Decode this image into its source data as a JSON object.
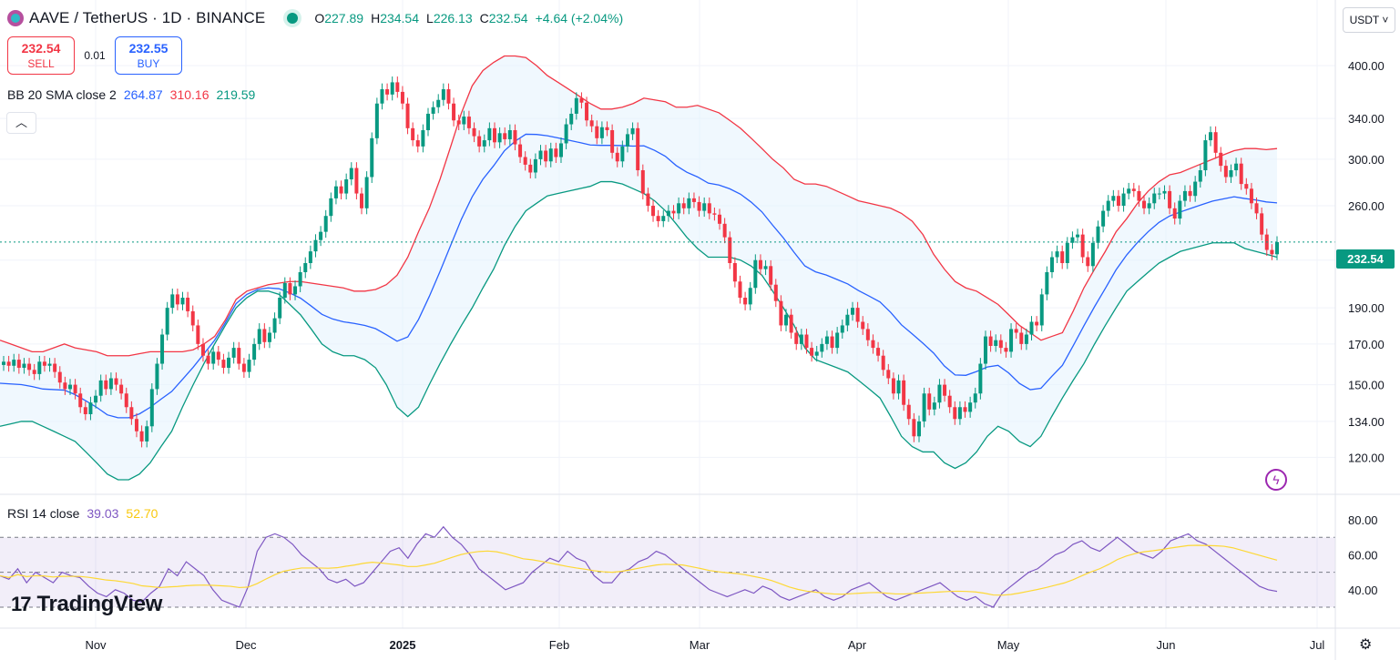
{
  "header": {
    "symbol": "AAVE / TetherUS · 1D · BINANCE",
    "o_label": "O",
    "o_value": "227.89",
    "h_label": "H",
    "h_value": "234.54",
    "l_label": "L",
    "l_value": "226.13",
    "c_label": "C",
    "c_value": "232.54",
    "change": "+4.64 (+2.04%)"
  },
  "trade": {
    "sell_price": "232.54",
    "sell_label": "SELL",
    "spread": "0.01",
    "buy_price": "232.55",
    "buy_label": "BUY"
  },
  "bb_legend": {
    "name": "BB 20 SMA close 2",
    "basis": "264.87",
    "upper": "310.16",
    "lower": "219.59"
  },
  "rsi_legend": {
    "name": "RSI 14 close",
    "rsi": "39.03",
    "ma": "52.70"
  },
  "currency_button": "USDT ˅",
  "current_price_tag": "232.54",
  "collapse_icon": "chevron-up-icon",
  "brand": {
    "mark": "17",
    "name": "TradingView"
  },
  "colors": {
    "up": "#089981",
    "down": "#f23645",
    "basis": "#2962ff",
    "upper": "#f23645",
    "lower": "#089981",
    "rsi": "#7e57c2",
    "rsi_ma": "#fdd835",
    "band_fill": "#e3f2fd"
  },
  "chart_data": {
    "type": "candlestick",
    "x_axis_labels": [
      "Nov",
      "Dec",
      "2025",
      "Feb",
      "Mar",
      "Apr",
      "May",
      "Jun",
      "Jul"
    ],
    "price_axis": {
      "scale": "log",
      "ticks": [
        120,
        134,
        150,
        170,
        190,
        220,
        260,
        300,
        340,
        400
      ]
    },
    "rsi_axis": {
      "ticks": [
        40,
        60,
        80
      ],
      "bands": [
        30,
        50,
        70
      ]
    },
    "closes": [
      161,
      159,
      162,
      158,
      160,
      157,
      155,
      161,
      159,
      160,
      156,
      151,
      148,
      150,
      146,
      140,
      137,
      142,
      145,
      152,
      148,
      153,
      150,
      146,
      140,
      135,
      130,
      126,
      132,
      148,
      160,
      175,
      190,
      198,
      192,
      196,
      188,
      180,
      170,
      164,
      160,
      166,
      162,
      158,
      163,
      168,
      160,
      156,
      162,
      170,
      178,
      171,
      176,
      184,
      196,
      205,
      198,
      203,
      212,
      218,
      226,
      234,
      240,
      252,
      266,
      276,
      270,
      282,
      292,
      270,
      258,
      284,
      320,
      356,
      372,
      366,
      380,
      369,
      356,
      330,
      318,
      312,
      328,
      345,
      352,
      360,
      372,
      356,
      338,
      334,
      342,
      330,
      322,
      312,
      318,
      330,
      316,
      325,
      319,
      328,
      314,
      302,
      295,
      288,
      300,
      308,
      298,
      310,
      302,
      315,
      334,
      345,
      362,
      357,
      338,
      332,
      320,
      331,
      328,
      306,
      298,
      312,
      324,
      330,
      290,
      270,
      260,
      252,
      248,
      252,
      256,
      254,
      262,
      258,
      266,
      263,
      256,
      262,
      254,
      253,
      246,
      236,
      218,
      206,
      196,
      192,
      202,
      220,
      214,
      216,
      204,
      194,
      180,
      186,
      176,
      170,
      175,
      168,
      164,
      166,
      170,
      174,
      168,
      176,
      180,
      186,
      190,
      182,
      178,
      172,
      168,
      164,
      157,
      153,
      146,
      152,
      141,
      135,
      128,
      134,
      146,
      139,
      142,
      150,
      145,
      140,
      135,
      140,
      138,
      142,
      146,
      160,
      174,
      169,
      172,
      168,
      166,
      178,
      176,
      170,
      175,
      182,
      180,
      198,
      212,
      222,
      226,
      218,
      232,
      236,
      238,
      222,
      216,
      232,
      244,
      256,
      264,
      268,
      260,
      270,
      274,
      272,
      264,
      258,
      262,
      270,
      270,
      272,
      258,
      250,
      264,
      272,
      268,
      280,
      290,
      318,
      326,
      306,
      294,
      284,
      290,
      296,
      278,
      274,
      262,
      254,
      238,
      227,
      224,
      232.54
    ],
    "bb_upper_approx": [
      172,
      170,
      168,
      166,
      166,
      168,
      170,
      168,
      167,
      166,
      164,
      164,
      164,
      165,
      166,
      166,
      166,
      166,
      167,
      170,
      174,
      183,
      195,
      200,
      202,
      204,
      205,
      206,
      206,
      205,
      204,
      203,
      202,
      200,
      200,
      201,
      204,
      210,
      222,
      240,
      258,
      282,
      312,
      346,
      376,
      394,
      404,
      412,
      412,
      410,
      400,
      388,
      380,
      372,
      364,
      356,
      350,
      350,
      352,
      356,
      362,
      360,
      358,
      352,
      352,
      354,
      350,
      346,
      338,
      330,
      320,
      310,
      300,
      292,
      282,
      278,
      278,
      276,
      272,
      268,
      264,
      262,
      260,
      258,
      254,
      248,
      238,
      224,
      214,
      206,
      202,
      200,
      196,
      192,
      186,
      180,
      176,
      172,
      174,
      176,
      188,
      202,
      214,
      226,
      240,
      250,
      262,
      272,
      280,
      286,
      288,
      292,
      296,
      300,
      304,
      308,
      310,
      310,
      309,
      310
    ],
    "bb_lower_approx": [
      132,
      133,
      134,
      134,
      132,
      130,
      128,
      126,
      122,
      118,
      114,
      112,
      112,
      114,
      118,
      124,
      130,
      140,
      150,
      160,
      170,
      180,
      190,
      196,
      200,
      200,
      198,
      192,
      186,
      178,
      170,
      166,
      164,
      164,
      162,
      158,
      150,
      140,
      136,
      140,
      150,
      160,
      170,
      180,
      190,
      202,
      214,
      230,
      244,
      256,
      262,
      268,
      270,
      272,
      274,
      276,
      280,
      280,
      278,
      274,
      270,
      264,
      256,
      246,
      236,
      228,
      222,
      222,
      222,
      220,
      216,
      210,
      200,
      190,
      180,
      168,
      162,
      160,
      158,
      156,
      152,
      148,
      144,
      136,
      128,
      124,
      122,
      122,
      118,
      116,
      118,
      122,
      128,
      132,
      130,
      126,
      124,
      128,
      136,
      144,
      152,
      160,
      170,
      180,
      190,
      200,
      206,
      212,
      218,
      222,
      226,
      228,
      230,
      232,
      232,
      232,
      228,
      226,
      224,
      222
    ],
    "rsi_approx": [
      48,
      46,
      52,
      44,
      50,
      47,
      44,
      50,
      48,
      47,
      42,
      38,
      36,
      40,
      38,
      34,
      33,
      38,
      42,
      52,
      48,
      56,
      52,
      48,
      40,
      34,
      32,
      30,
      42,
      62,
      70,
      72,
      70,
      66,
      60,
      56,
      52,
      46,
      44,
      46,
      42,
      44,
      50,
      56,
      62,
      64,
      58,
      66,
      72,
      70,
      76,
      70,
      66,
      60,
      52,
      48,
      44,
      40,
      42,
      44,
      50,
      54,
      58,
      56,
      62,
      58,
      56,
      48,
      44,
      44,
      50,
      52,
      56,
      58,
      62,
      60,
      56,
      52,
      48,
      44,
      40,
      38,
      36,
      38,
      40,
      38,
      42,
      40,
      36,
      34,
      36,
      38,
      40,
      36,
      34,
      36,
      40,
      42,
      44,
      40,
      36,
      34,
      36,
      38,
      40,
      42,
      44,
      40,
      36,
      34,
      36,
      32,
      30,
      38,
      42,
      46,
      50,
      52,
      56,
      60,
      62,
      66,
      68,
      64,
      62,
      66,
      70,
      66,
      62,
      60,
      58,
      62,
      68,
      70,
      72,
      68,
      66,
      62,
      58,
      54,
      50,
      46,
      42,
      40,
      39.03
    ]
  }
}
